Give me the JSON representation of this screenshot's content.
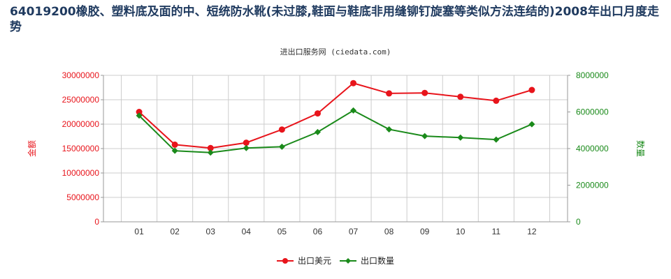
{
  "header": {
    "title": "64019200橡胶、塑料底及面的中、短统防水靴(未过膝,鞋面与鞋底非用缝铆钉旋塞等类似方法连结的)2008年出口月度走势",
    "source": "进出口服务网 (ciedata.com)"
  },
  "colors": {
    "series1": "#e8141b",
    "series2": "#1a8a1a",
    "grid": "#cccccc"
  },
  "chart_data": {
    "type": "line",
    "categories": [
      "01",
      "02",
      "03",
      "04",
      "05",
      "06",
      "07",
      "08",
      "09",
      "10",
      "11",
      "12"
    ],
    "series": [
      {
        "name": "出口美元",
        "axis": "left",
        "values": [
          22500000,
          15800000,
          15100000,
          16200000,
          18900000,
          22200000,
          28400000,
          26300000,
          26400000,
          25600000,
          24800000,
          27000000
        ]
      },
      {
        "name": "出口数量",
        "axis": "right",
        "values": [
          5800000,
          3880000,
          3780000,
          4030000,
          4100000,
          4900000,
          6080000,
          5050000,
          4680000,
          4600000,
          4490000,
          5330000
        ]
      }
    ],
    "ylabel_left": "金额",
    "ylabel_right": "数量",
    "ylim_left": [
      0,
      30000000
    ],
    "ylim_right": [
      0,
      8000000
    ],
    "yticks_left": [
      "0",
      "5000000",
      "10000000",
      "15000000",
      "20000000",
      "25000000",
      "30000000"
    ],
    "yticks_right": [
      "0",
      "2000000",
      "4000000",
      "6000000",
      "8000000"
    ],
    "grid": true,
    "legend_position": "bottom"
  }
}
